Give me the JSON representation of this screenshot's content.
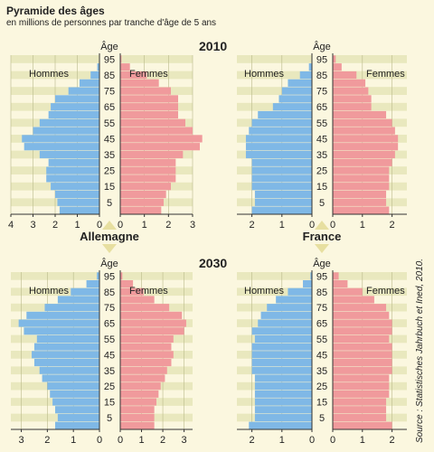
{
  "title": "Pyramide des âges",
  "subtitle": "en millions de personnes par tranche d'âge de 5 ans",
  "source": "Source : Statistisches Jahrbuch et Ined, 2010.",
  "labels": {
    "age": "Âge",
    "men": "Hommes",
    "women": "Femmes",
    "year_top": "2010",
    "year_bottom": "2030",
    "country_left": "Allemagne",
    "country_right": "France"
  },
  "colors": {
    "men": "#7fb8e6",
    "women": "#f09a9c",
    "band": "#dadda2",
    "background": "#fbf7df",
    "arrow": "#e7dfa0"
  },
  "age_ticks": [
    5,
    15,
    25,
    35,
    45,
    55,
    65,
    75,
    85,
    95
  ],
  "chart_data": [
    {
      "type": "bar",
      "title": "Allemagne 2010",
      "age_groups": [
        "0-4",
        "5-9",
        "10-14",
        "15-19",
        "20-24",
        "25-29",
        "30-34",
        "35-39",
        "40-44",
        "45-49",
        "50-54",
        "55-59",
        "60-64",
        "65-69",
        "70-74",
        "75-79",
        "80-84",
        "85-89",
        "90-94",
        "95-99"
      ],
      "series": [
        {
          "name": "Hommes",
          "values": [
            1.8,
            1.9,
            2.0,
            2.2,
            2.4,
            2.4,
            2.3,
            2.7,
            3.4,
            3.5,
            3.0,
            2.7,
            2.3,
            2.2,
            2.0,
            1.4,
            0.9,
            0.4,
            0.1,
            0.0
          ]
        },
        {
          "name": "Femmes",
          "values": [
            1.7,
            1.8,
            1.9,
            2.1,
            2.3,
            2.3,
            2.3,
            2.6,
            3.3,
            3.4,
            3.0,
            2.7,
            2.4,
            2.4,
            2.4,
            2.1,
            1.6,
            1.1,
            0.4,
            0.05
          ]
        }
      ],
      "xticks_men": [
        4,
        3,
        2,
        1,
        0
      ],
      "xticks_women": [
        0,
        1,
        2,
        3
      ],
      "xlim_men": [
        0,
        4
      ],
      "xlim_women": [
        0,
        3
      ]
    },
    {
      "type": "bar",
      "title": "France 2010",
      "age_groups": [
        "0-4",
        "5-9",
        "10-14",
        "15-19",
        "20-24",
        "25-29",
        "30-34",
        "35-39",
        "40-44",
        "45-49",
        "50-54",
        "55-59",
        "60-64",
        "65-69",
        "70-74",
        "75-79",
        "80-84",
        "85-89",
        "90-94",
        "95-99"
      ],
      "series": [
        {
          "name": "Hommes",
          "values": [
            2.0,
            1.9,
            1.9,
            2.0,
            2.0,
            2.0,
            2.0,
            2.2,
            2.2,
            2.2,
            2.1,
            2.0,
            1.8,
            1.3,
            1.1,
            1.0,
            0.8,
            0.4,
            0.1,
            0.0
          ]
        },
        {
          "name": "Femmes",
          "values": [
            1.9,
            1.8,
            1.8,
            1.9,
            1.9,
            1.9,
            2.0,
            2.1,
            2.2,
            2.2,
            2.1,
            2.0,
            1.8,
            1.3,
            1.3,
            1.2,
            1.1,
            0.8,
            0.3,
            0.1
          ]
        }
      ],
      "xticks_men": [
        2,
        1,
        0
      ],
      "xticks_women": [
        0,
        1,
        2
      ],
      "xlim_men": [
        0,
        2.5
      ],
      "xlim_women": [
        0,
        2.5
      ]
    },
    {
      "type": "bar",
      "title": "Allemagne 2030",
      "age_groups": [
        "0-4",
        "5-9",
        "10-14",
        "15-19",
        "20-24",
        "25-29",
        "30-34",
        "35-39",
        "40-44",
        "45-49",
        "50-54",
        "55-59",
        "60-64",
        "65-69",
        "70-74",
        "75-79",
        "80-84",
        "85-89",
        "90-94",
        "95-99"
      ],
      "series": [
        {
          "name": "Hommes",
          "values": [
            1.7,
            1.6,
            1.7,
            1.8,
            1.9,
            2.0,
            2.2,
            2.3,
            2.5,
            2.6,
            2.5,
            2.4,
            2.9,
            3.1,
            2.8,
            2.1,
            1.6,
            1.1,
            0.5,
            0.1
          ]
        },
        {
          "name": "Femmes",
          "values": [
            1.6,
            1.6,
            1.6,
            1.7,
            1.8,
            1.9,
            2.1,
            2.2,
            2.4,
            2.5,
            2.4,
            2.5,
            3.0,
            3.1,
            2.9,
            2.3,
            1.6,
            1.1,
            0.6,
            0.1
          ]
        }
      ],
      "xticks_men": [
        3,
        2,
        1,
        0
      ],
      "xticks_women": [
        0,
        1,
        2,
        3
      ],
      "xlim_men": [
        0,
        3.4
      ],
      "xlim_women": [
        0,
        3.4
      ]
    },
    {
      "type": "bar",
      "title": "France 2030",
      "age_groups": [
        "0-4",
        "5-9",
        "10-14",
        "15-19",
        "20-24",
        "25-29",
        "30-34",
        "35-39",
        "40-44",
        "45-49",
        "50-54",
        "55-59",
        "60-64",
        "65-69",
        "70-74",
        "75-79",
        "80-84",
        "85-89",
        "90-94",
        "95-99"
      ],
      "series": [
        {
          "name": "Hommes",
          "values": [
            2.1,
            1.9,
            1.9,
            1.9,
            1.9,
            1.9,
            1.9,
            2.0,
            2.0,
            2.0,
            2.0,
            1.9,
            2.0,
            1.8,
            1.7,
            1.5,
            1.2,
            0.8,
            0.3,
            0.05
          ]
        },
        {
          "name": "Femmes",
          "values": [
            2.0,
            1.8,
            1.8,
            1.8,
            1.9,
            1.9,
            1.9,
            2.0,
            2.0,
            2.0,
            2.0,
            1.9,
            2.0,
            2.0,
            1.9,
            1.8,
            1.4,
            1.0,
            0.5,
            0.2
          ]
        }
      ],
      "xticks_men": [
        2,
        1,
        0
      ],
      "xticks_women": [
        0,
        1,
        2
      ],
      "xlim_men": [
        0,
        2.5
      ],
      "xlim_women": [
        0,
        2.5
      ]
    }
  ]
}
